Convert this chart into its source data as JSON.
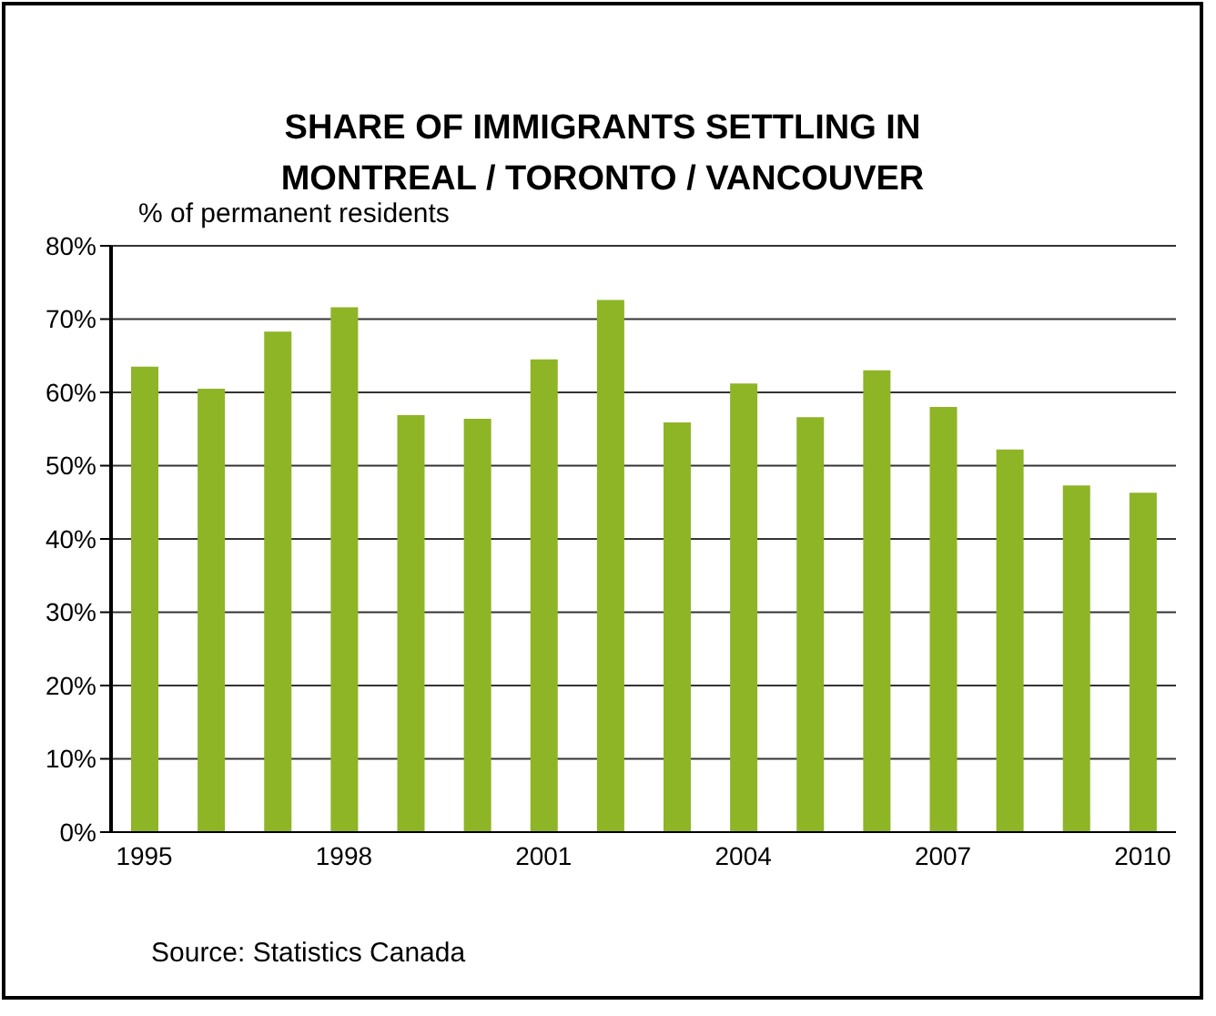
{
  "chart_data": {
    "type": "bar",
    "title": "SHARE OF IMMIGRANTS SETTLING IN MONTREAL / TORONTO / VANCOUVER",
    "ylabel": "% of permanent residents",
    "categories": [
      "1995",
      null,
      null,
      "1998",
      null,
      null,
      "2001",
      null,
      null,
      "2004",
      null,
      null,
      "2007",
      null,
      null,
      "2010"
    ],
    "values": [
      63.5,
      60.5,
      68.3,
      71.6,
      56.9,
      56.4,
      64.5,
      72.6,
      55.9,
      61.2,
      56.6,
      63.0,
      58.0,
      52.2,
      47.3,
      46.3
    ],
    "color": "#8db526",
    "ylim": [
      0,
      80
    ],
    "yticks": [
      {
        "value": 0,
        "label": "0%"
      },
      {
        "value": 10,
        "label": "10%"
      },
      {
        "value": 20,
        "label": "20%"
      },
      {
        "value": 30,
        "label": "30%"
      },
      {
        "value": 40,
        "label": "40%"
      },
      {
        "value": 50,
        "label": "50%"
      },
      {
        "value": 60,
        "label": "60%"
      },
      {
        "value": 70,
        "label": "70%"
      },
      {
        "value": 80,
        "label": "80%"
      }
    ],
    "grid": "y",
    "annotations": [
      "Source: Statistics Canada"
    ]
  }
}
